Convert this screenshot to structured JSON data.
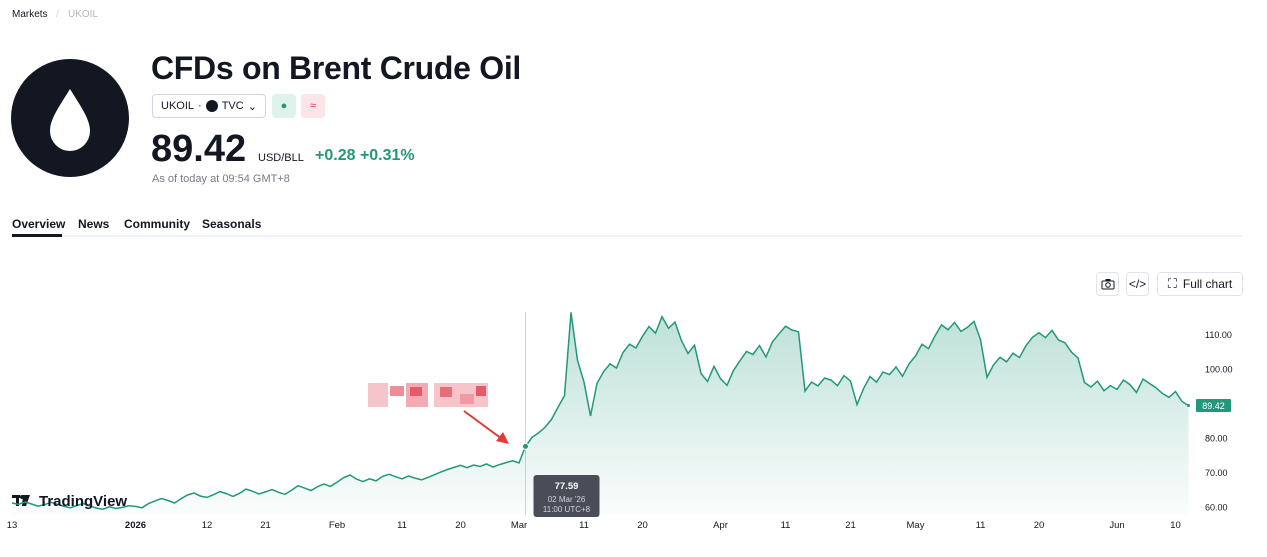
{
  "breadcrumb": [
    "Markets",
    "UKOIL"
  ],
  "header": {
    "title": "CFDs on Brent Crude Oil",
    "symbol": "UKOIL",
    "exchange": "TVC",
    "currency": "USD/BLL",
    "change": "+0.28",
    "change_percent": "+0.31%",
    "as_of": "As of today at 09:54 GMT+8"
  },
  "tabs": [
    "Overview",
    "News",
    "Community",
    "Seasonals"
  ],
  "toolbar": {
    "full_chart": "Full chart"
  },
  "chart_data": {
    "type": "line",
    "color": "#22987a",
    "watermark": "TradingView",
    "categories": [
      "13",
      null,
      null,
      null,
      null,
      null,
      null,
      null,
      null,
      null,
      null,
      null,
      null,
      null,
      null,
      null,
      null,
      null,
      null,
      "2026",
      null,
      null,
      null,
      null,
      null,
      null,
      null,
      null,
      null,
      null,
      "12",
      null,
      null,
      null,
      null,
      null,
      null,
      null,
      null,
      "21",
      null,
      null,
      null,
      null,
      null,
      null,
      null,
      null,
      null,
      null,
      "Feb",
      null,
      null,
      null,
      null,
      null,
      null,
      null,
      null,
      null,
      "11",
      null,
      null,
      null,
      null,
      null,
      null,
      null,
      null,
      "20",
      null,
      null,
      null,
      null,
      null,
      null,
      null,
      null,
      "Mar",
      null,
      null,
      null,
      null,
      null,
      null,
      null,
      null,
      null,
      "11",
      null,
      null,
      null,
      null,
      null,
      null,
      null,
      null,
      "20",
      null,
      null,
      null,
      null,
      null,
      null,
      null,
      null,
      null,
      null,
      null,
      "Apr",
      null,
      null,
      null,
      null,
      null,
      null,
      null,
      null,
      null,
      "11",
      null,
      null,
      null,
      null,
      null,
      null,
      null,
      null,
      null,
      "21",
      null,
      null,
      null,
      null,
      null,
      null,
      null,
      null,
      null,
      "May",
      null,
      null,
      null,
      null,
      null,
      null,
      null,
      null,
      null,
      "11",
      null,
      null,
      null,
      null,
      null,
      null,
      null,
      null,
      "20",
      null,
      null,
      null,
      null,
      null,
      null,
      null,
      null,
      null,
      null,
      null,
      "Jun",
      null,
      null,
      null,
      null,
      null,
      null,
      null,
      null,
      "10",
      null,
      null
    ],
    "values": [
      61.2,
      60.8,
      61.5,
      60.9,
      60.3,
      60.7,
      61.4,
      60.8,
      60.2,
      59.8,
      60.5,
      61.0,
      60.3,
      59.7,
      59.4,
      60.1,
      59.6,
      59.9,
      60.4,
      60.2,
      59.8,
      61.0,
      61.8,
      62.5,
      61.9,
      61.2,
      62.4,
      63.5,
      64.1,
      63.2,
      62.8,
      63.6,
      64.5,
      63.9,
      63.1,
      64.0,
      65.2,
      64.6,
      63.8,
      64.4,
      65.1,
      64.3,
      63.7,
      64.9,
      66.2,
      65.5,
      64.8,
      65.9,
      66.7,
      66.0,
      67.2,
      68.5,
      69.3,
      68.1,
      67.4,
      68.2,
      67.6,
      68.9,
      69.5,
      68.8,
      68.2,
      69.0,
      68.4,
      67.9,
      68.6,
      69.4,
      70.2,
      70.9,
      71.5,
      72.1,
      71.4,
      72.2,
      71.8,
      72.5,
      71.6,
      72.3,
      72.9,
      73.4,
      72.8,
      77.59,
      80.2,
      81.5,
      83.1,
      85.4,
      88.9,
      92.3,
      116.4,
      102.5,
      96.2,
      86.4,
      95.8,
      99.2,
      101.5,
      100.3,
      104.8,
      107.2,
      106.1,
      109.5,
      112.3,
      110.4,
      115.2,
      111.8,
      113.6,
      108.2,
      104.5,
      106.9,
      98.7,
      96.4,
      100.8,
      97.2,
      95.3,
      99.6,
      102.4,
      105.1,
      104.2,
      106.8,
      103.5,
      107.9,
      110.2,
      112.4,
      111.3,
      110.8,
      93.6,
      96.2,
      95.1,
      97.4,
      96.8,
      95.2,
      98.1,
      96.5,
      89.7,
      94.3,
      97.8,
      96.2,
      99.1,
      98.4,
      100.6,
      97.9,
      101.5,
      103.8,
      107.2,
      105.9,
      109.6,
      112.8,
      111.4,
      113.5,
      110.9,
      112.1,
      113.8,
      108.5,
      97.6,
      101.2,
      103.4,
      102.1,
      104.6,
      103.3,
      106.8,
      109.2,
      110.5,
      109.1,
      111.2,
      108.4,
      107.6,
      104.9,
      103.2,
      96.1,
      94.8,
      96.5,
      93.7,
      95.2,
      94.1,
      96.8,
      95.5,
      93.2,
      97.1,
      95.8,
      94.6,
      92.9,
      91.8,
      93.5,
      90.6,
      89.42
    ],
    "ylim": [
      58,
      120
    ],
    "yticks": [
      {
        "value": 60,
        "label": "60.00"
      },
      {
        "value": 70,
        "label": "70.00"
      },
      {
        "value": 80,
        "label": "80.00"
      },
      {
        "value": 100,
        "label": "100.00"
      },
      {
        "value": 110,
        "label": "110.00"
      }
    ],
    "tooltip": {
      "date": "02 Mar '26",
      "time": "11:00 UTC+8"
    }
  }
}
